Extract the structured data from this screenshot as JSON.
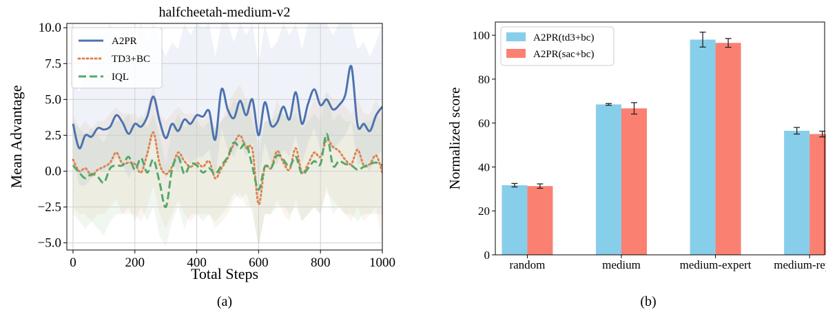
{
  "chart_data": [
    {
      "type": "line",
      "title": "halfcheetah-medium-v2",
      "xlabel": "Total Steps",
      "ylabel": "Mean Advantage",
      "xlim": [
        -20,
        1000
      ],
      "ylim": [
        -5.5,
        10.3
      ],
      "xticks": [
        "0",
        "200",
        "400",
        "600",
        "800",
        "1000"
      ],
      "yticks": [
        "−5.0",
        "−2.5",
        "0.0",
        "2.5",
        "5.0",
        "7.5",
        "10.0"
      ],
      "ytick_values": [
        -5,
        -2.5,
        0,
        2.5,
        5,
        7.5,
        10
      ],
      "xtick_values": [
        0,
        200,
        400,
        600,
        800,
        1000
      ],
      "grid": true,
      "legend_position": "top-left",
      "caption": "(a)",
      "series": [
        {
          "name": "A2PR",
          "color": "#4c72b0",
          "style": "solid",
          "x": [
            0,
            20,
            40,
            60,
            80,
            100,
            120,
            140,
            160,
            180,
            200,
            220,
            240,
            260,
            280,
            300,
            320,
            340,
            360,
            380,
            400,
            420,
            440,
            460,
            480,
            500,
            520,
            540,
            560,
            580,
            600,
            620,
            640,
            660,
            680,
            700,
            720,
            740,
            760,
            780,
            800,
            820,
            840,
            860,
            880,
            900,
            920,
            940,
            960,
            980,
            1000
          ],
          "y": [
            3.3,
            1.6,
            2.5,
            2.4,
            3.0,
            2.9,
            3.1,
            3.9,
            3.4,
            2.6,
            3.3,
            3.1,
            3.8,
            5.2,
            3.5,
            2.3,
            3.3,
            2.8,
            3.6,
            3.3,
            3.9,
            3.8,
            4.2,
            2.2,
            5.7,
            4.3,
            3.7,
            4.9,
            3.9,
            5.0,
            2.5,
            4.8,
            3.2,
            3.4,
            4.5,
            3.6,
            5.5,
            3.3,
            4.7,
            5.7,
            4.6,
            5.0,
            4.3,
            4.6,
            5.3,
            7.3,
            3.2,
            3.3,
            2.8,
            3.9,
            4.5
          ],
          "band_low": [
            1.0,
            -1.0,
            -1.0,
            -0.5,
            0.0,
            0.0,
            0.3,
            1.0,
            0.5,
            -0.5,
            0.5,
            0.0,
            1.0,
            2.5,
            0.5,
            -0.5,
            0.5,
            0.0,
            1.0,
            0.5,
            1.0,
            1.0,
            1.5,
            -0.5,
            3.0,
            1.5,
            1.0,
            2.0,
            1.0,
            2.0,
            -0.5,
            2.0,
            0.5,
            0.5,
            1.5,
            1.0,
            2.5,
            0.5,
            2.0,
            3.0,
            1.5,
            2.0,
            1.5,
            2.0,
            2.5,
            3.5,
            0.5,
            0.5,
            0.0,
            1.0,
            1.5
          ],
          "band_high": [
            6.5,
            5.5,
            7.0,
            7.5,
            8.5,
            9.5,
            10.3,
            9.0,
            9.5,
            8.0,
            9.0,
            10.3,
            9.0,
            10.3,
            9.0,
            8.0,
            9.0,
            8.5,
            10.3,
            9.5,
            10.3,
            10.0,
            10.3,
            8.0,
            10.3,
            10.3,
            9.0,
            10.3,
            9.5,
            10.3,
            7.5,
            10.3,
            8.5,
            9.0,
            10.3,
            9.5,
            10.3,
            8.5,
            10.3,
            10.3,
            10.3,
            10.3,
            9.5,
            10.3,
            10.3,
            10.3,
            8.5,
            9.0,
            8.0,
            9.0,
            10.3
          ]
        },
        {
          "name": "TD3+BC",
          "color": "#dd8452",
          "style": "dotted",
          "x": [
            0,
            20,
            40,
            60,
            80,
            100,
            120,
            140,
            160,
            180,
            200,
            220,
            240,
            260,
            280,
            300,
            320,
            340,
            360,
            380,
            400,
            420,
            440,
            460,
            480,
            500,
            520,
            540,
            560,
            580,
            600,
            620,
            640,
            660,
            680,
            700,
            720,
            740,
            760,
            780,
            800,
            820,
            840,
            860,
            880,
            900,
            920,
            940,
            960,
            980,
            1000
          ],
          "y": [
            0.8,
            0.0,
            0.2,
            -0.3,
            0.1,
            0.3,
            0.6,
            1.3,
            0.5,
            0.6,
            0.5,
            -0.1,
            1.2,
            2.7,
            0.5,
            -0.2,
            0.3,
            1.3,
            0.7,
            0.3,
            0.6,
            0.3,
            0.7,
            -0.5,
            0.2,
            0.9,
            1.9,
            2.5,
            1.6,
            1.5,
            -2.3,
            0.3,
            0.2,
            1.4,
            0.6,
            0.1,
            1.6,
            -0.1,
            0.5,
            1.3,
            1.0,
            2.2,
            1.7,
            1.4,
            0.8,
            0.5,
            1.5,
            0.4,
            0.5,
            1.1,
            -0.1
          ],
          "band_low": [
            -2.5,
            -3.0,
            -3.0,
            -3.5,
            -3.0,
            -3.0,
            -2.5,
            -2.0,
            -3.0,
            -3.0,
            -3.0,
            -3.5,
            -2.5,
            -1.0,
            -3.0,
            -4.0,
            -3.0,
            -2.0,
            -3.0,
            -3.5,
            -3.0,
            -3.0,
            -3.0,
            -4.0,
            -3.5,
            -3.0,
            -2.0,
            -1.5,
            -2.5,
            -2.5,
            -5.3,
            -3.0,
            -3.0,
            -2.0,
            -3.0,
            -3.5,
            -2.0,
            -3.5,
            -3.0,
            -2.5,
            -3.0,
            -1.5,
            -2.0,
            -2.5,
            -3.0,
            -3.5,
            -2.5,
            -3.5,
            -3.0,
            -2.5,
            -5.3
          ],
          "band_high": [
            4.0,
            3.0,
            3.5,
            3.0,
            3.5,
            3.5,
            4.0,
            4.5,
            4.0,
            4.0,
            4.0,
            3.5,
            4.5,
            6.0,
            4.0,
            3.5,
            4.0,
            4.5,
            4.0,
            4.0,
            4.0,
            3.5,
            4.0,
            3.0,
            3.5,
            4.5,
            5.5,
            6.0,
            5.0,
            5.0,
            1.0,
            3.5,
            3.5,
            5.0,
            4.0,
            3.5,
            5.0,
            3.5,
            4.0,
            5.0,
            4.5,
            5.5,
            5.0,
            5.0,
            4.5,
            4.0,
            5.0,
            4.0,
            4.0,
            5.0,
            4.0
          ]
        },
        {
          "name": "IQL",
          "color": "#55a868",
          "style": "dashed",
          "x": [
            0,
            20,
            40,
            60,
            80,
            100,
            120,
            140,
            160,
            180,
            200,
            220,
            240,
            260,
            280,
            300,
            320,
            340,
            360,
            380,
            400,
            420,
            440,
            460,
            480,
            500,
            520,
            540,
            560,
            580,
            600,
            620,
            640,
            660,
            680,
            700,
            720,
            740,
            760,
            780,
            800,
            820,
            840,
            860,
            880,
            900,
            920,
            940,
            960,
            980,
            1000
          ],
          "y": [
            0.4,
            -0.1,
            -0.5,
            -0.2,
            -0.4,
            -0.8,
            0.2,
            0.4,
            0.4,
            1.0,
            0.1,
            0.9,
            -0.1,
            0.8,
            -0.8,
            -2.5,
            0.1,
            1.0,
            -0.2,
            0.5,
            0.4,
            -0.1,
            0.2,
            -0.2,
            0.4,
            1.0,
            2.0,
            1.6,
            1.9,
            0.3,
            -1.3,
            0.3,
            0.2,
            1.1,
            0.8,
            0.3,
            1.0,
            -0.2,
            0.2,
            0.7,
            0.5,
            2.6,
            0.4,
            0.7,
            0.5,
            0.4,
            0.1,
            0.3,
            0.5,
            0.6,
            0.4
          ],
          "band_low": [
            -3.0,
            -3.5,
            -4.0,
            -3.5,
            -4.0,
            -4.5,
            -3.5,
            -3.0,
            -3.0,
            -2.5,
            -3.5,
            -2.5,
            -3.5,
            -2.5,
            -4.5,
            -5.3,
            -3.5,
            -2.5,
            -4.0,
            -3.0,
            -3.0,
            -3.5,
            -3.0,
            -3.5,
            -3.0,
            -2.5,
            -1.5,
            -2.0,
            -1.5,
            -3.0,
            -5.3,
            -3.0,
            -3.0,
            -2.5,
            -2.5,
            -3.0,
            -2.5,
            -3.5,
            -3.0,
            -2.5,
            -3.0,
            -1.0,
            -3.0,
            -2.5,
            -3.0,
            -3.0,
            -3.5,
            -3.0,
            -3.0,
            -3.0,
            -3.0
          ],
          "band_high": [
            3.5,
            3.0,
            2.5,
            3.0,
            2.5,
            2.0,
            3.0,
            3.5,
            3.5,
            4.0,
            3.0,
            4.0,
            3.0,
            4.0,
            2.5,
            0.5,
            3.0,
            4.0,
            3.0,
            3.5,
            3.5,
            3.0,
            3.5,
            3.0,
            3.5,
            4.0,
            5.0,
            4.5,
            5.0,
            3.5,
            2.0,
            3.5,
            3.5,
            4.0,
            4.0,
            3.5,
            4.0,
            3.0,
            3.5,
            4.0,
            3.5,
            5.5,
            3.5,
            4.0,
            3.5,
            3.5,
            3.0,
            3.5,
            3.5,
            4.0,
            3.5
          ]
        }
      ]
    },
    {
      "type": "bar",
      "ylabel": "Normalized score",
      "ylim": [
        0,
        106
      ],
      "yticks": [
        "0",
        "20",
        "40",
        "60",
        "80",
        "100"
      ],
      "ytick_values": [
        0,
        20,
        40,
        60,
        80,
        100
      ],
      "categories": [
        "random",
        "medium",
        "medium-expert",
        "medium-replay"
      ],
      "grid": false,
      "legend_position": "top-left",
      "caption": "(b)",
      "series": [
        {
          "name": "A2PR(td3+bc)",
          "color": "#87ceeb",
          "values": [
            31.7,
            68.5,
            98.0,
            56.5
          ],
          "errors": [
            0.8,
            0.4,
            3.4,
            1.5
          ]
        },
        {
          "name": "A2PR(sac+bc)",
          "color": "#fa8072",
          "values": [
            31.3,
            66.7,
            96.5,
            55.0
          ],
          "errors": [
            1.0,
            2.6,
            2.0,
            1.3
          ]
        }
      ]
    }
  ]
}
